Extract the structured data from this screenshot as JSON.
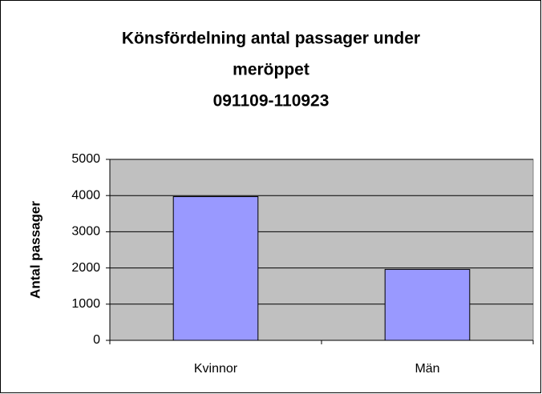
{
  "chart_data": {
    "type": "bar",
    "title": [
      "Könsfördelning antal passager under",
      "meröppet",
      "091109-110923"
    ],
    "y_label": "Antal passager",
    "categories": [
      "Kvinnor",
      "Män"
    ],
    "values": [
      3970,
      1960
    ],
    "color": "#9999ff",
    "ylim": [
      0,
      5000
    ],
    "yticks": [
      0,
      1000,
      2000,
      3000,
      4000,
      5000
    ],
    "grid": true
  }
}
